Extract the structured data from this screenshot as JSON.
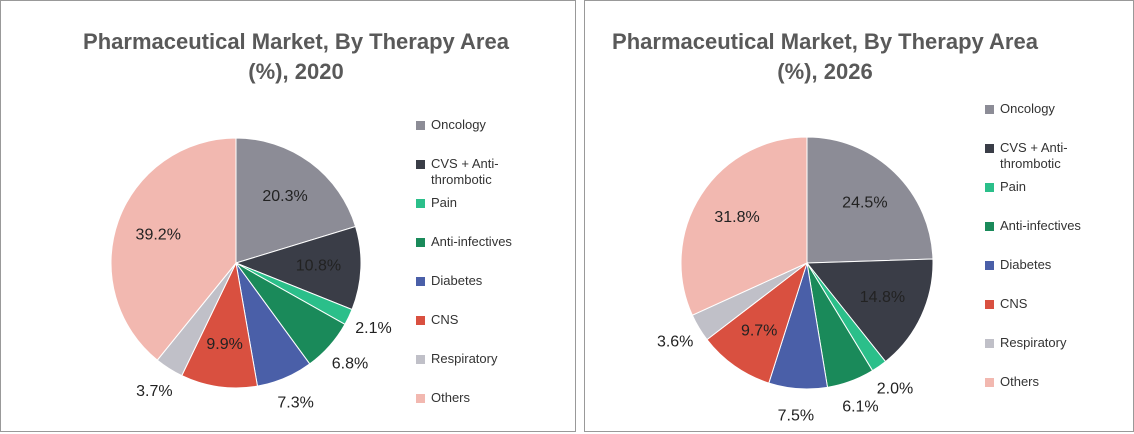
{
  "chart_data": [
    {
      "type": "pie",
      "title": "Pharmaceutical Market, By Therapy Area (%), 2020",
      "categories": [
        "Oncology",
        "CVS + Anti-thrombotic",
        "Pain",
        "Anti-infectives",
        "Diabetes",
        "CNS",
        "Respiratory",
        "Others"
      ],
      "values": [
        20.3,
        10.8,
        2.1,
        6.8,
        7.3,
        9.9,
        3.7,
        39.2
      ],
      "value_labels": [
        "20.3%",
        "10.8%",
        "2.1%",
        "6.8%",
        "7.3%",
        "9.9%",
        "3.7%",
        "39.2%"
      ],
      "colors": [
        "#8c8c96",
        "#3a3d47",
        "#2bbf8a",
        "#1a8a5a",
        "#4a5fa8",
        "#d95040",
        "#c0c0c8",
        "#f2b8b0"
      ]
    },
    {
      "type": "pie",
      "title": "Pharmaceutical Market, By Therapy Area (%), 2026",
      "categories": [
        "Oncology",
        "CVS + Anti-thrombotic",
        "Pain",
        "Anti-infectives",
        "Diabetes",
        "CNS",
        "Respiratory",
        "Others"
      ],
      "values": [
        24.5,
        14.8,
        2.0,
        6.1,
        7.5,
        9.7,
        3.6,
        31.8
      ],
      "value_labels": [
        "24.5%",
        "14.8%",
        "2.0%",
        "6.1%",
        "7.5%",
        "9.7%",
        "3.6%",
        "31.8%"
      ],
      "colors": [
        "#8c8c96",
        "#3a3d47",
        "#2bbf8a",
        "#1a8a5a",
        "#4a5fa8",
        "#d95040",
        "#c0c0c8",
        "#f2b8b0"
      ]
    }
  ]
}
